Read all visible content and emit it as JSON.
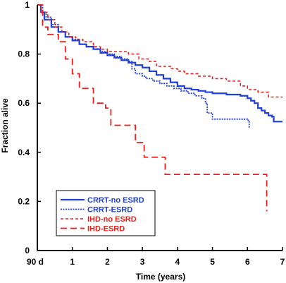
{
  "chart_data": {
    "type": "line",
    "title": "",
    "xlabel": "Time (years)",
    "ylabel": "Fraction alive",
    "xlim": [
      0,
      7
    ],
    "ylim": [
      0,
      1
    ],
    "x_ticks": [
      {
        "value": 0,
        "label": "90 d"
      },
      {
        "value": 1,
        "label": "1"
      },
      {
        "value": 2,
        "label": "2"
      },
      {
        "value": 3,
        "label": "3"
      },
      {
        "value": 4,
        "label": "4"
      },
      {
        "value": 5,
        "label": "5"
      },
      {
        "value": 6,
        "label": "6"
      },
      {
        "value": 7,
        "label": "7"
      }
    ],
    "y_ticks": [
      {
        "value": 0,
        "label": "0"
      },
      {
        "value": 0.2,
        "label": "0.2"
      },
      {
        "value": 0.4,
        "label": "0.4"
      },
      {
        "value": 0.6,
        "label": "0.6"
      },
      {
        "value": 0.8,
        "label": "0.8"
      },
      {
        "value": 1,
        "label": "1"
      }
    ],
    "legend_position": "bottom-left",
    "grid": false,
    "series": [
      {
        "name": "CRRT-no ESRD",
        "color": "#1f3fd8",
        "style": "solid",
        "x": [
          0,
          0.1,
          0.2,
          0.4,
          0.6,
          0.8,
          1.0,
          1.2,
          1.4,
          1.6,
          1.8,
          2.0,
          2.2,
          2.4,
          2.6,
          2.8,
          3.0,
          3.2,
          3.4,
          3.6,
          3.8,
          4.0,
          4.2,
          4.4,
          4.6,
          4.8,
          5.0,
          5.2,
          5.4,
          5.6,
          5.8,
          6.0,
          6.1,
          6.2,
          6.3,
          6.4,
          6.5,
          6.6,
          6.7,
          6.75,
          7.0
        ],
        "y": [
          1.0,
          0.97,
          0.94,
          0.91,
          0.89,
          0.87,
          0.855,
          0.84,
          0.83,
          0.82,
          0.805,
          0.795,
          0.785,
          0.775,
          0.765,
          0.755,
          0.745,
          0.73,
          0.715,
          0.7,
          0.685,
          0.67,
          0.66,
          0.655,
          0.65,
          0.645,
          0.64,
          0.64,
          0.635,
          0.635,
          0.63,
          0.62,
          0.61,
          0.6,
          0.58,
          0.57,
          0.56,
          0.55,
          0.545,
          0.525,
          0.525
        ]
      },
      {
        "name": "CRRT-ESRD",
        "color": "#1f3fd8",
        "style": "dotted",
        "x": [
          0,
          0.1,
          0.15,
          0.25,
          0.4,
          0.6,
          0.8,
          1.0,
          1.2,
          1.4,
          1.6,
          1.8,
          2.0,
          2.2,
          2.4,
          2.6,
          2.7,
          2.8,
          3.0,
          3.1,
          3.3,
          3.5,
          3.7,
          3.9,
          4.1,
          4.3,
          4.5,
          4.7,
          4.8,
          4.85,
          5.0,
          5.1,
          5.5,
          6.0,
          6.05
        ],
        "y": [
          1.0,
          1.0,
          0.97,
          0.95,
          0.92,
          0.89,
          0.87,
          0.86,
          0.84,
          0.83,
          0.82,
          0.81,
          0.8,
          0.79,
          0.78,
          0.77,
          0.74,
          0.72,
          0.71,
          0.7,
          0.69,
          0.68,
          0.67,
          0.66,
          0.65,
          0.64,
          0.63,
          0.62,
          0.6,
          0.56,
          0.535,
          0.535,
          0.535,
          0.53,
          0.5
        ]
      },
      {
        "name": "IHD-no ESRD",
        "color": "#e8201b",
        "style": "short-dash",
        "x": [
          0,
          0.1,
          0.3,
          0.5,
          0.7,
          0.9,
          1.1,
          1.3,
          1.6,
          1.8,
          2.0,
          2.2,
          2.6,
          2.9,
          3.2,
          3.4,
          3.8,
          4.0,
          4.2,
          4.6,
          5.0,
          5.4,
          5.8,
          6.0,
          6.3,
          6.6,
          7.0
        ],
        "y": [
          1.0,
          0.97,
          0.94,
          0.91,
          0.89,
          0.87,
          0.86,
          0.85,
          0.83,
          0.82,
          0.81,
          0.81,
          0.8,
          0.78,
          0.77,
          0.75,
          0.74,
          0.73,
          0.72,
          0.71,
          0.7,
          0.69,
          0.67,
          0.655,
          0.645,
          0.625,
          0.625
        ]
      },
      {
        "name": "IHD-ESRD",
        "color": "#e8201b",
        "style": "long-dash",
        "x": [
          0,
          0.15,
          0.3,
          0.6,
          0.8,
          1.0,
          1.2,
          1.6,
          1.95,
          2.1,
          2.4,
          2.6,
          2.8,
          3.05,
          3.25,
          3.65,
          3.9,
          4.0,
          5.0,
          6.0,
          6.45,
          6.55
        ],
        "y": [
          1.0,
          0.91,
          0.88,
          0.85,
          0.78,
          0.72,
          0.66,
          0.6,
          0.58,
          0.51,
          0.51,
          0.51,
          0.44,
          0.38,
          0.38,
          0.31,
          0.31,
          0.31,
          0.31,
          0.31,
          0.31,
          0.16
        ]
      }
    ]
  }
}
